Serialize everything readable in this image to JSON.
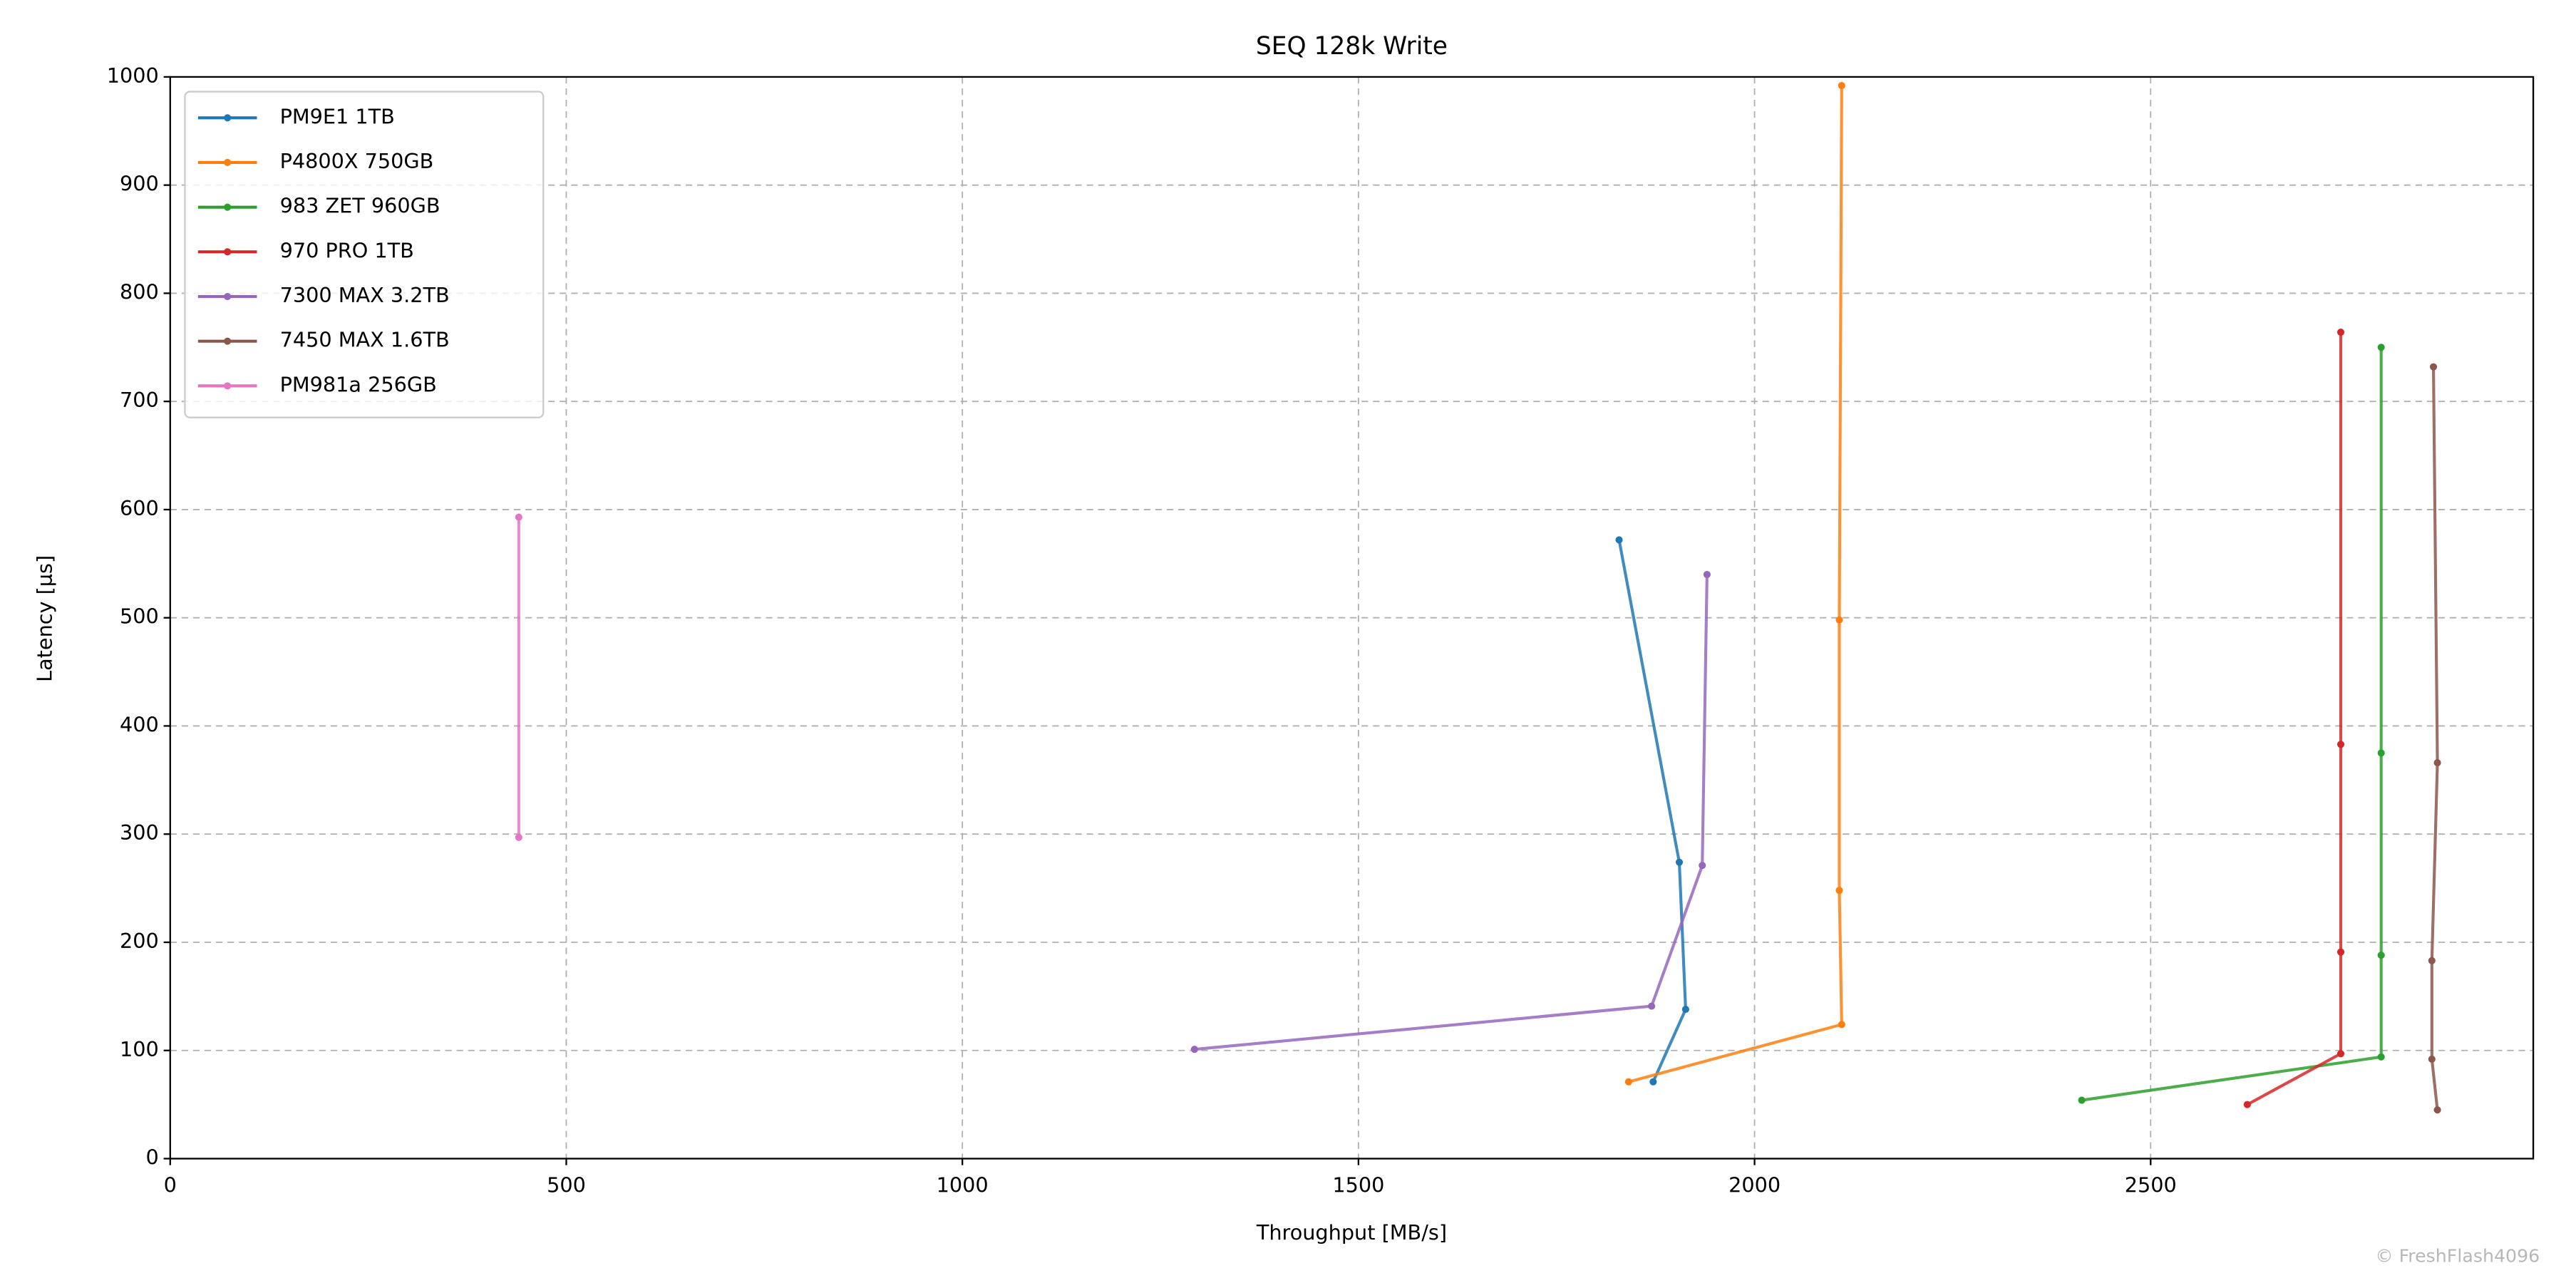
{
  "chart_data": {
    "type": "line",
    "title": "SEQ 128k Write",
    "xlabel": "Throughput [MB/s]",
    "ylabel": "Latency [µs]",
    "watermark": "© FreshFlash4096",
    "xlim": [
      0,
      2983
    ],
    "xticks": [
      0,
      500,
      1000,
      1500,
      2000,
      2500
    ],
    "ylim": [
      0,
      1000
    ],
    "yticks": [
      0,
      100,
      200,
      300,
      400,
      500,
      600,
      700,
      800,
      900,
      1000
    ],
    "grid": true,
    "legend": "upper left",
    "series": [
      {
        "name": "PM9E1 1TB",
        "color": "#1f77b4",
        "x": [
          1872,
          1913,
          1905,
          1829
        ],
        "values": [
          71,
          138,
          274,
          572
        ]
      },
      {
        "name": "P4800X 750GB",
        "color": "#ff7f0e",
        "x": [
          1841,
          2110,
          2107,
          2107,
          2110
        ],
        "values": [
          71,
          124,
          248,
          498,
          992
        ]
      },
      {
        "name": "983 ZET 960GB",
        "color": "#2ca02c",
        "x": [
          2413,
          2791,
          2791,
          2791,
          2791
        ],
        "values": [
          54,
          94,
          188,
          375,
          750
        ]
      },
      {
        "name": "970 PRO 1TB",
        "color": "#d62728",
        "x": [
          2622,
          2740,
          2740,
          2740,
          2740
        ],
        "values": [
          50,
          97,
          191,
          383,
          764
        ]
      },
      {
        "name": "7300 MAX 3.2TB",
        "color": "#9467bd",
        "x": [
          1293,
          1870,
          1934,
          1940
        ],
        "values": [
          101,
          141,
          271,
          540
        ]
      },
      {
        "name": "7450 MAX 1.6TB",
        "color": "#8c564b",
        "x": [
          2862,
          2855,
          2855,
          2862,
          2857
        ],
        "values": [
          45,
          92,
          183,
          366,
          732
        ]
      },
      {
        "name": "PM981a 256GB",
        "color": "#e377c2",
        "x": [
          440,
          440
        ],
        "values": [
          297,
          593
        ]
      }
    ]
  }
}
